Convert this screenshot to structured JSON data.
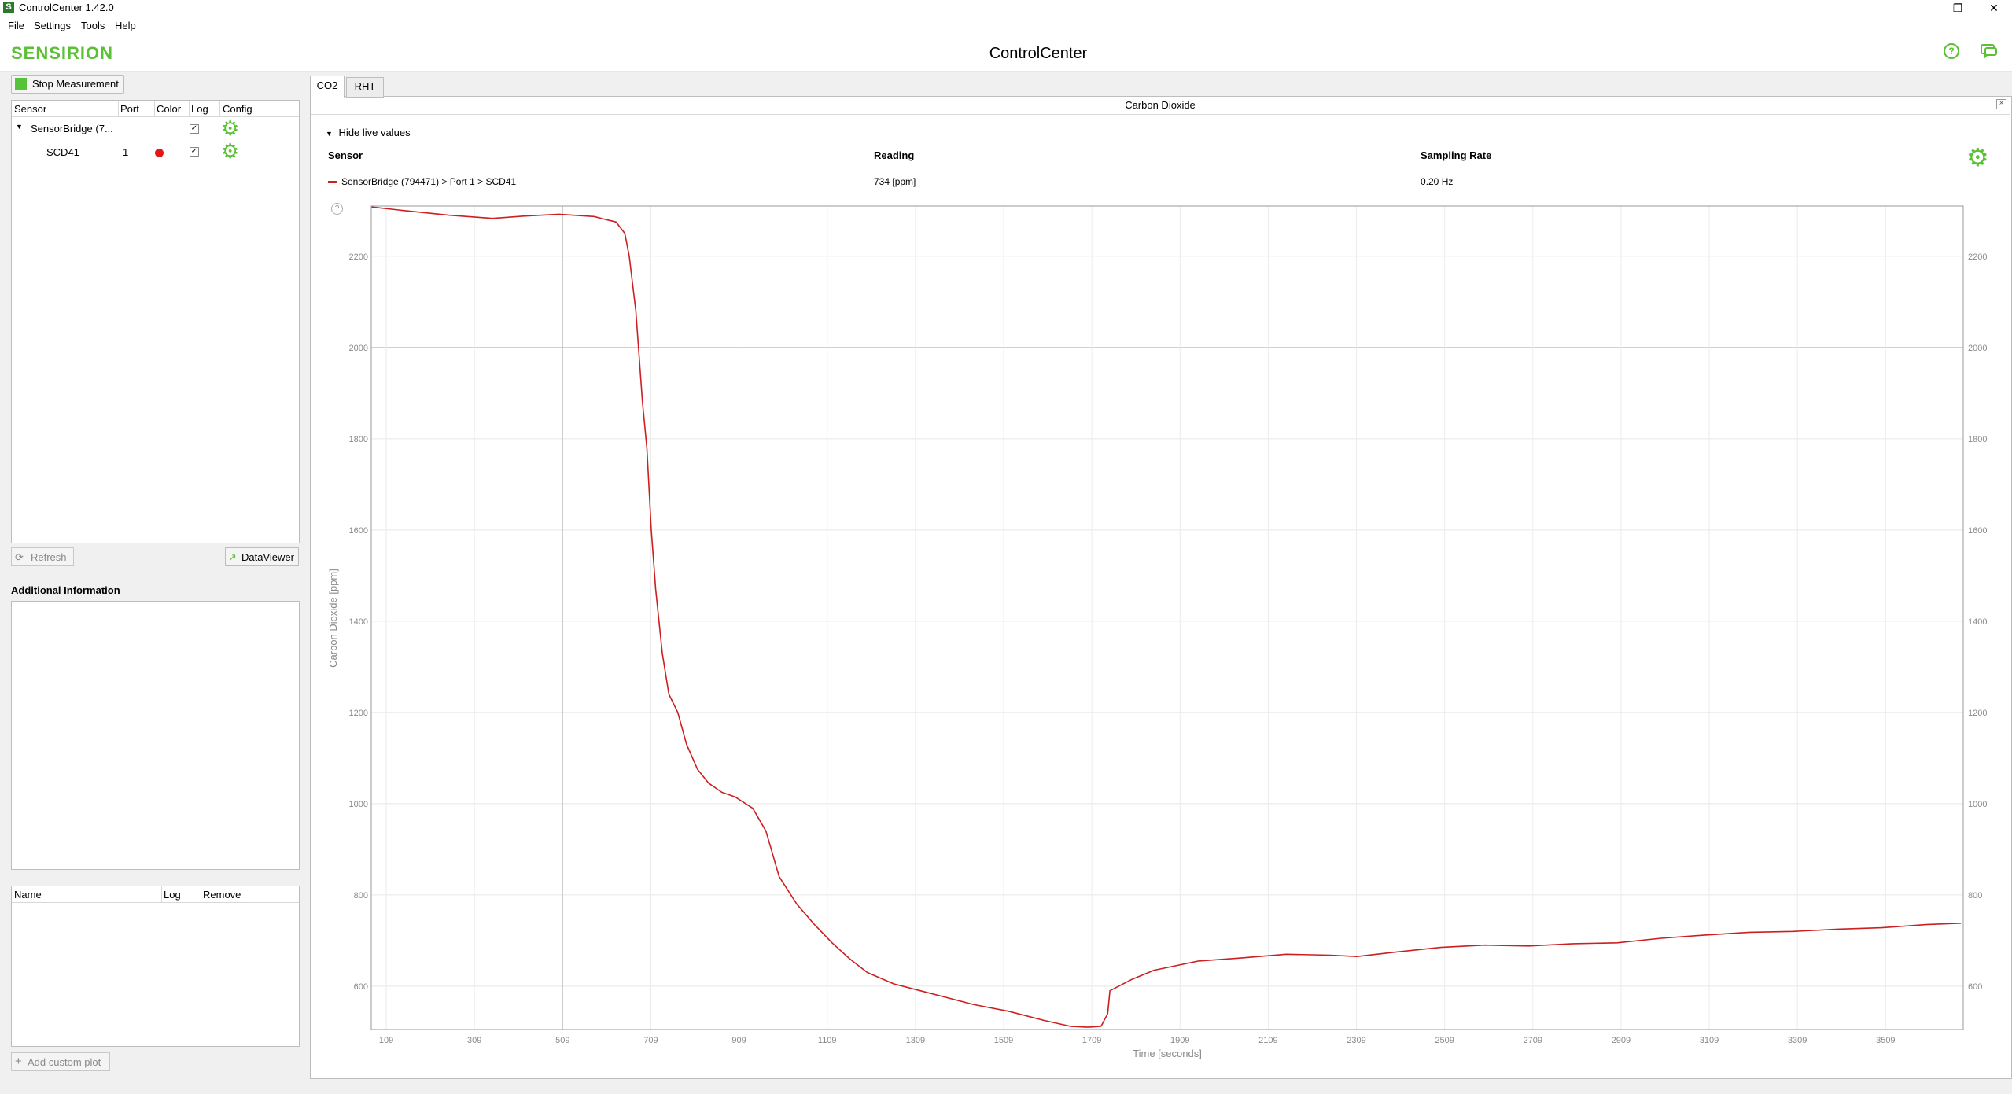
{
  "window": {
    "title": "ControlCenter 1.42.0",
    "app_icon": "S"
  },
  "menu": [
    "File",
    "Settings",
    "Tools",
    "Help"
  ],
  "header": {
    "brand": "SENSIRION",
    "title": "ControlCenter"
  },
  "left": {
    "stop_label": "Stop Measurement",
    "columns": [
      "Sensor",
      "Port",
      "Color",
      "Log",
      "Config"
    ],
    "rows": [
      {
        "sensor": "SensorBridge (7...",
        "port": "",
        "log": "✓"
      },
      {
        "sensor": "SCD41",
        "port": "1",
        "log": "✓"
      }
    ],
    "refresh_label": "Refresh",
    "dataviewer_label": "DataViewer",
    "additional_title": "Additional Information",
    "custom_columns": [
      "Name",
      "Log",
      "Remove"
    ],
    "add_plot_label": "Add custom plot"
  },
  "tabs": [
    "CO2",
    "RHT"
  ],
  "panel": {
    "title": "Carbon Dioxide",
    "hide_live": "Hide live values",
    "live_headers": [
      "Sensor",
      "Reading",
      "Sampling Rate"
    ],
    "live_row": {
      "sensor": "SensorBridge (794471) > Port 1 > SCD41",
      "reading": "734 [ppm]",
      "rate": "0.20 Hz"
    },
    "series_color": "#cc1f1f"
  },
  "chart_data": {
    "type": "line",
    "title": "",
    "xlabel": "Time [seconds]",
    "ylabel": "Carbon Dioxide [ppm]",
    "xlim": [
      75,
      3685
    ],
    "ylim": [
      505,
      2310
    ],
    "x_ticks": [
      109,
      309,
      509,
      709,
      909,
      1109,
      1309,
      1509,
      1709,
      1909,
      2109,
      2309,
      2509,
      2709,
      2909,
      3109,
      3309,
      3509
    ],
    "y_ticks": [
      600,
      800,
      1000,
      1200,
      1400,
      1600,
      1800,
      2000,
      2200
    ],
    "grid": true,
    "series": [
      {
        "color": "#cc1f1f",
        "points": [
          [
            76,
            2308
          ],
          [
            150,
            2300
          ],
          [
            250,
            2290
          ],
          [
            350,
            2283
          ],
          [
            420,
            2288
          ],
          [
            500,
            2292
          ],
          [
            580,
            2287
          ],
          [
            630,
            2275
          ],
          [
            650,
            2250
          ],
          [
            660,
            2200
          ],
          [
            675,
            2080
          ],
          [
            690,
            1880
          ],
          [
            700,
            1780
          ],
          [
            710,
            1600
          ],
          [
            720,
            1470
          ],
          [
            735,
            1330
          ],
          [
            750,
            1240
          ],
          [
            770,
            1200
          ],
          [
            790,
            1130
          ],
          [
            815,
            1075
          ],
          [
            840,
            1045
          ],
          [
            870,
            1025
          ],
          [
            900,
            1015
          ],
          [
            940,
            990
          ],
          [
            970,
            940
          ],
          [
            1000,
            840
          ],
          [
            1040,
            780
          ],
          [
            1080,
            735
          ],
          [
            1120,
            695
          ],
          [
            1160,
            660
          ],
          [
            1200,
            630
          ],
          [
            1260,
            605
          ],
          [
            1320,
            590
          ],
          [
            1380,
            575
          ],
          [
            1440,
            560
          ],
          [
            1520,
            545
          ],
          [
            1600,
            525
          ],
          [
            1660,
            512
          ],
          [
            1700,
            510
          ],
          [
            1730,
            512
          ],
          [
            1745,
            540
          ],
          [
            1750,
            590
          ],
          [
            1800,
            615
          ],
          [
            1850,
            635
          ],
          [
            1950,
            655
          ],
          [
            2050,
            662
          ],
          [
            2150,
            670
          ],
          [
            2250,
            668
          ],
          [
            2310,
            665
          ],
          [
            2400,
            675
          ],
          [
            2500,
            685
          ],
          [
            2600,
            690
          ],
          [
            2700,
            688
          ],
          [
            2800,
            693
          ],
          [
            2900,
            695
          ],
          [
            3000,
            705
          ],
          [
            3100,
            712
          ],
          [
            3200,
            718
          ],
          [
            3300,
            720
          ],
          [
            3400,
            725
          ],
          [
            3500,
            728
          ],
          [
            3600,
            735
          ],
          [
            3680,
            738
          ]
        ]
      }
    ]
  }
}
